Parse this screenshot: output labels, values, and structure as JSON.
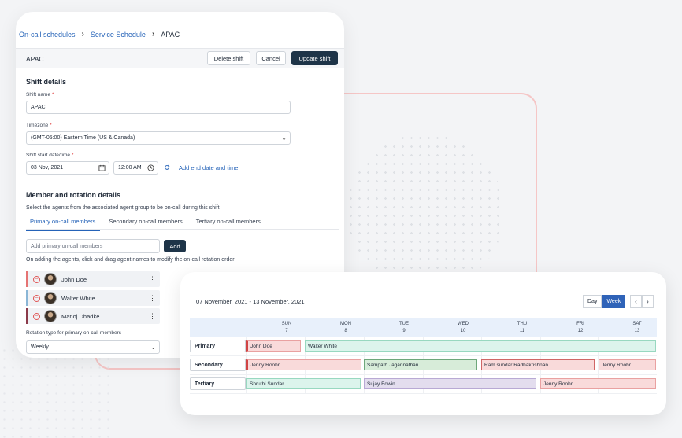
{
  "breadcrumb": {
    "items": [
      "On-call schedules",
      "Service Schedule"
    ],
    "current": "APAC"
  },
  "header": {
    "title": "APAC",
    "delete_label": "Delete shift",
    "cancel_label": "Cancel",
    "update_label": "Update shift"
  },
  "shift_details": {
    "section_title": "Shift details",
    "shift_name_label": "Shift name",
    "shift_name_value": "APAC",
    "timezone_label": "Timezone",
    "timezone_value": "(GMT-05:00) Eastern Time (US & Canada)",
    "start_label": "Shift start date/time",
    "start_date": "03 Nov, 2021",
    "start_time": "12:00 AM",
    "add_end_label": "Add end date and time"
  },
  "members": {
    "section_title": "Member and rotation details",
    "description": "Select the agents from the associated agent group to be on-call during this shift",
    "tabs": [
      "Primary on-call members",
      "Secondary on-call members",
      "Tertiary on-call members"
    ],
    "add_placeholder": "Add primary on-call members",
    "add_button": "Add",
    "hint": "On adding the agents, click and drag agent names to modify the on-call rotation order",
    "list": [
      {
        "name": "John Doe",
        "color": "#e57373"
      },
      {
        "name": "Walter White",
        "color": "#8ab6d6"
      },
      {
        "name": "Manoj Dhadke",
        "color": "#8b3a4a"
      }
    ],
    "rotation_label": "Rotation type for primary on-call members",
    "rotation_value": "Weekly"
  },
  "schedule": {
    "range": "07 November, 2021 - 13 November, 2021",
    "view_day": "Day",
    "view_week": "Week",
    "prev": "‹",
    "next": "›",
    "days": [
      {
        "name": "SUN",
        "num": "7"
      },
      {
        "name": "MON",
        "num": "8"
      },
      {
        "name": "TUE",
        "num": "9"
      },
      {
        "name": "WED",
        "num": "10"
      },
      {
        "name": "THU",
        "num": "11"
      },
      {
        "name": "FRI",
        "num": "12"
      },
      {
        "name": "SAT",
        "num": "13"
      }
    ],
    "rows": [
      "Primary",
      "Secondary",
      "Tertiary"
    ],
    "bars": {
      "p1": "John Doe",
      "p2": "Walter White",
      "s1": "Jenny Roohr",
      "s2": "Sampath Jagannathan",
      "s3": "Ram sundar Radhakrishnan",
      "s4": "Jenny Roohr",
      "t1": "Shruthi Sundar",
      "t2": "Sujay Edwin",
      "t3": "Jenny Roohr"
    }
  },
  "icons": {
    "calendar": "calendar-icon",
    "clock": "clock-icon",
    "dropdown": "chevron-down-icon",
    "drag": "drag-handle-icon",
    "remove": "remove-icon"
  }
}
